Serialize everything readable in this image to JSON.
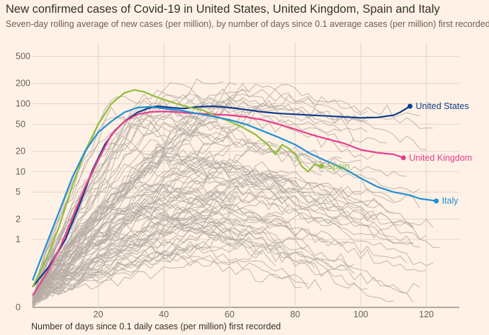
{
  "chart_data": {
    "type": "line",
    "title": "New confirmed cases of Covid-19 in United States, United Kingdom, Spain and Italy",
    "subtitle": "Seven-day rolling average of new cases (per million), by number of days since 0.1 average cases (per million) first recorded",
    "xlabel": "Number of days since 0.1 daily cases (per million) first recorded",
    "ylabel": "",
    "yscale": "log",
    "xlim": [
      0,
      130
    ],
    "ylim": [
      0.1,
      800
    ],
    "x_ticks": [
      20,
      40,
      60,
      80,
      100,
      120
    ],
    "y_ticks": [
      {
        "value": 0.1,
        "label": "0"
      },
      {
        "value": 1,
        "label": "1"
      },
      {
        "value": 2,
        "label": "2"
      },
      {
        "value": 5,
        "label": "5"
      },
      {
        "value": 10,
        "label": "10"
      },
      {
        "value": 20,
        "label": "20"
      },
      {
        "value": 50,
        "label": "50"
      },
      {
        "value": 100,
        "label": "100"
      },
      {
        "value": 200,
        "label": "200"
      },
      {
        "value": 500,
        "label": "500"
      }
    ],
    "grid": true,
    "highlight_series": [
      {
        "name": "United States",
        "color": "#0f3e8c",
        "x": [
          0,
          5,
          10,
          15,
          18,
          22,
          25,
          28,
          32,
          35,
          38,
          42,
          46,
          50,
          55,
          60,
          65,
          70,
          75,
          80,
          85,
          90,
          95,
          100,
          105,
          110,
          112,
          115
        ],
        "values": [
          0.2,
          0.4,
          1,
          4,
          10,
          25,
          40,
          55,
          75,
          85,
          92,
          88,
          85,
          90,
          92,
          88,
          82,
          76,
          72,
          70,
          68,
          66,
          64,
          62,
          63,
          68,
          75,
          92
        ]
      },
      {
        "name": "United Kingdom",
        "color": "#e83e8c",
        "x": [
          0,
          4,
          8,
          12,
          16,
          20,
          24,
          28,
          32,
          36,
          40,
          45,
          50,
          55,
          60,
          65,
          70,
          75,
          80,
          85,
          90,
          95,
          100,
          105,
          110,
          113
        ],
        "values": [
          0.15,
          0.3,
          0.7,
          2,
          6,
          15,
          35,
          55,
          70,
          76,
          77,
          75,
          72,
          70,
          68,
          64,
          58,
          50,
          42,
          35,
          30,
          26,
          21,
          19,
          18,
          16
        ]
      },
      {
        "name": "Spain",
        "color": "#8fbf3a",
        "x": [
          0,
          4,
          8,
          12,
          16,
          20,
          24,
          28,
          31,
          34,
          37,
          40,
          44,
          48,
          52,
          56,
          60,
          64,
          68,
          72,
          74,
          76,
          78,
          80,
          82,
          84,
          86,
          88
        ],
        "values": [
          0.2,
          0.5,
          1.5,
          6,
          20,
          50,
          100,
          145,
          160,
          150,
          130,
          115,
          100,
          88,
          80,
          65,
          55,
          45,
          35,
          24,
          18,
          25,
          22,
          18,
          12,
          10,
          13,
          12
        ]
      },
      {
        "name": "Italy",
        "color": "#1e8fd6",
        "x": [
          0,
          4,
          8,
          12,
          16,
          20,
          24,
          28,
          32,
          36,
          40,
          45,
          50,
          55,
          60,
          65,
          70,
          75,
          80,
          85,
          90,
          95,
          100,
          105,
          110,
          115,
          118,
          123
        ],
        "values": [
          0.25,
          0.8,
          2.5,
          8,
          20,
          38,
          55,
          75,
          88,
          90,
          85,
          80,
          72,
          65,
          58,
          50,
          40,
          32,
          25,
          18,
          14,
          11,
          8,
          6,
          5,
          4.5,
          4,
          3.7
        ]
      }
    ],
    "annotations": [
      "United States",
      "United Kingdom",
      "Spain",
      "Italy"
    ],
    "background_series_count": 90
  }
}
